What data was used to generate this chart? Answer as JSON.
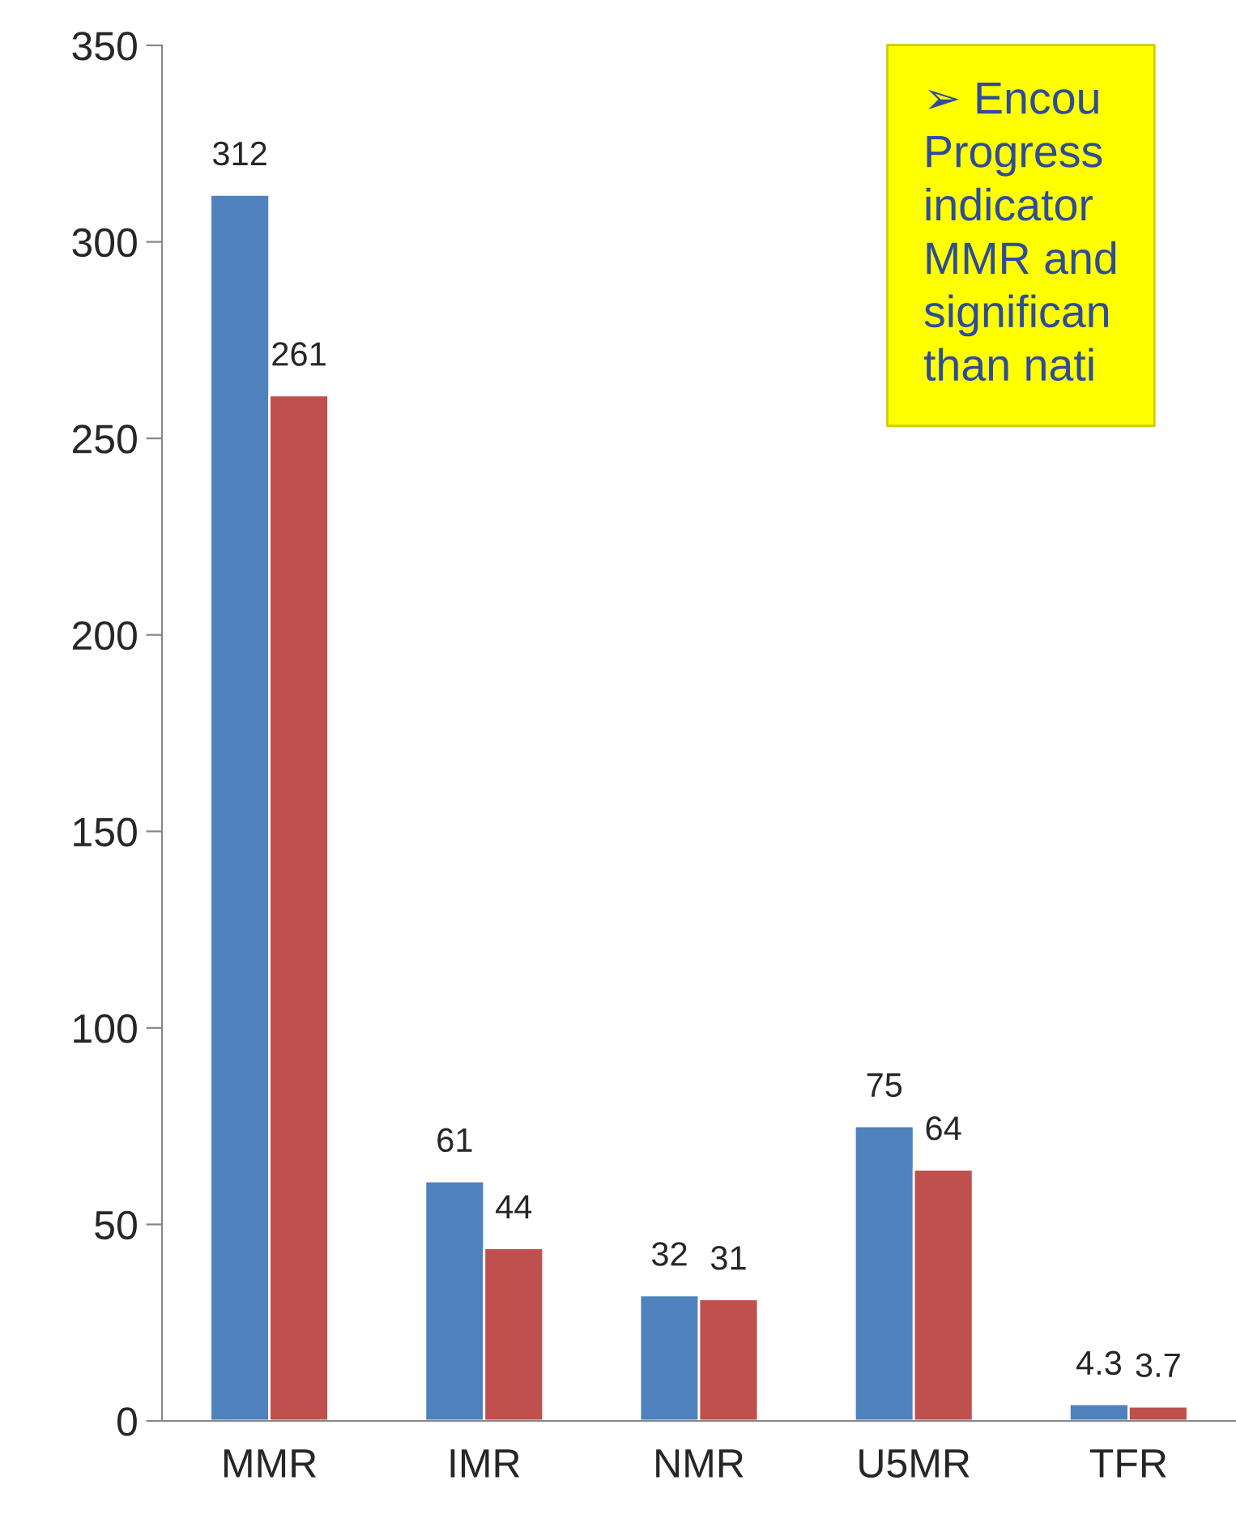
{
  "chart_data": {
    "type": "bar",
    "categories": [
      "MMR",
      "IMR",
      "NMR",
      "U5MR",
      "TFR"
    ],
    "series": [
      {
        "color": "#4f81bd",
        "values": [
          312,
          61,
          32,
          75,
          4.3
        ]
      },
      {
        "color": "#c0504d",
        "values": [
          261,
          44,
          31,
          64,
          3.7
        ]
      }
    ],
    "ylim": [
      0,
      350
    ],
    "yticks": [
      0,
      50,
      100,
      150,
      200,
      250,
      300,
      350
    ],
    "data_labels": true,
    "grid": false,
    "legend": false,
    "annotations": [
      "➢ Encou\nProgress\nindicator\nMMR and\nsignifican\nthan nati"
    ]
  }
}
